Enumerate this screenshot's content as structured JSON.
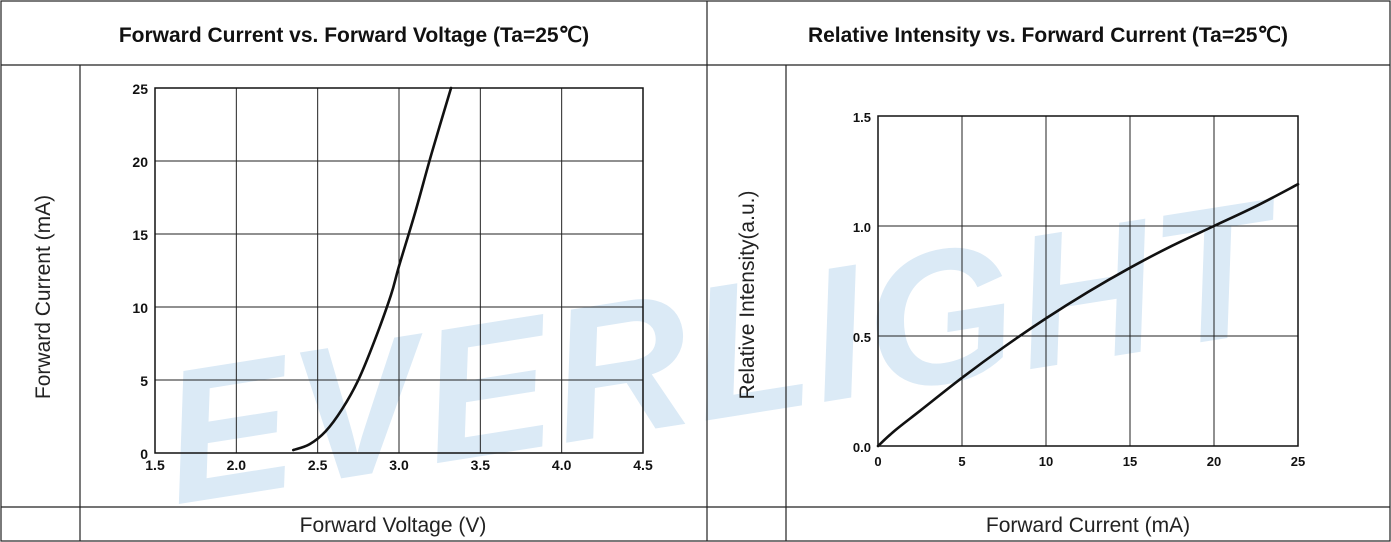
{
  "watermark": "EVERLIGHT",
  "chart_data": [
    {
      "type": "line",
      "title": "Forward Current vs. Forward Voltage (Ta=25℃)",
      "xlabel": "Forward Voltage (V)",
      "ylabel": "Forward Current (mA)",
      "xlim": [
        1.5,
        4.5
      ],
      "ylim": [
        0,
        25
      ],
      "xticks": [
        "1.5",
        "2.0",
        "2.5",
        "3.0",
        "3.5",
        "4.0",
        "4.5"
      ],
      "yticks": [
        "0",
        "5",
        "10",
        "15",
        "20",
        "25"
      ],
      "grid": true,
      "series": [
        {
          "x": [
            2.35,
            2.45,
            2.55,
            2.65,
            2.75,
            2.85,
            2.95,
            3.0,
            3.1,
            3.2,
            3.32
          ],
          "y": [
            0.2,
            0.6,
            1.5,
            3.0,
            5.0,
            7.7,
            10.8,
            12.8,
            16.5,
            20.5,
            25
          ]
        }
      ]
    },
    {
      "type": "line",
      "title": "Relative Intensity vs. Forward Current (Ta=25℃)",
      "xlabel": "Forward Current (mA)",
      "ylabel": "Relative Intensity(a.u.)",
      "xlim": [
        0,
        25
      ],
      "ylim": [
        0,
        1.5
      ],
      "xticks": [
        "0",
        "5",
        "10",
        "15",
        "20",
        "25"
      ],
      "yticks": [
        "0.0",
        "0.5",
        "1.0",
        "1.5"
      ],
      "grid": true,
      "series": [
        {
          "x": [
            0,
            1,
            2.5,
            5,
            7.5,
            10,
            12.5,
            15,
            17.5,
            20,
            22.5,
            25
          ],
          "y": [
            0,
            0.07,
            0.16,
            0.31,
            0.45,
            0.58,
            0.7,
            0.81,
            0.91,
            1.0,
            1.09,
            1.19
          ]
        }
      ]
    }
  ]
}
